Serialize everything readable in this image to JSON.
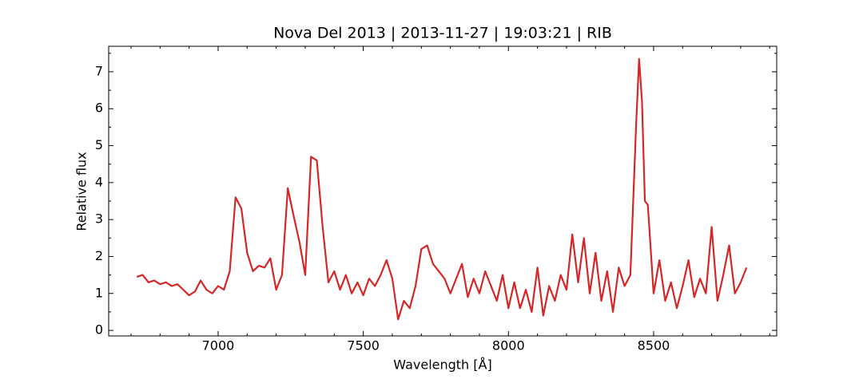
{
  "chart_data": {
    "type": "line",
    "title": "Nova Del 2013 | 2013-11-27 | 19:03:21 | RIB",
    "xlabel": "Wavelength [Å]",
    "ylabel": "Relative flux",
    "color": "#d62728",
    "x": [
      6720,
      6740,
      6760,
      6780,
      6800,
      6820,
      6840,
      6860,
      6880,
      6900,
      6920,
      6940,
      6960,
      6980,
      7000,
      7020,
      7040,
      7060,
      7080,
      7100,
      7120,
      7140,
      7160,
      7180,
      7200,
      7220,
      7240,
      7260,
      7280,
      7300,
      7320,
      7340,
      7360,
      7380,
      7400,
      7420,
      7440,
      7460,
      7480,
      7500,
      7520,
      7540,
      7560,
      7580,
      7600,
      7620,
      7640,
      7660,
      7680,
      7700,
      7720,
      7740,
      7760,
      7780,
      7800,
      7820,
      7840,
      7860,
      7880,
      7900,
      7920,
      7940,
      7960,
      7980,
      8000,
      8020,
      8040,
      8060,
      8080,
      8100,
      8120,
      8140,
      8160,
      8180,
      8200,
      8220,
      8240,
      8260,
      8280,
      8300,
      8320,
      8340,
      8360,
      8380,
      8400,
      8420,
      8440,
      8450,
      8460,
      8470,
      8480,
      8500,
      8520,
      8540,
      8560,
      8580,
      8600,
      8620,
      8640,
      8660,
      8680,
      8700,
      8720,
      8740,
      8760,
      8780,
      8800,
      8820
    ],
    "values": [
      1.45,
      1.5,
      1.3,
      1.35,
      1.25,
      1.3,
      1.2,
      1.25,
      1.1,
      0.95,
      1.05,
      1.35,
      1.1,
      1.0,
      1.2,
      1.1,
      1.6,
      3.6,
      3.3,
      2.1,
      1.6,
      1.75,
      1.7,
      1.95,
      1.1,
      1.5,
      3.85,
      3.1,
      2.4,
      1.5,
      4.7,
      4.6,
      2.8,
      1.3,
      1.6,
      1.1,
      1.5,
      1.0,
      1.3,
      0.95,
      1.4,
      1.2,
      1.5,
      1.9,
      1.4,
      0.3,
      0.8,
      0.6,
      1.2,
      2.2,
      2.3,
      1.8,
      1.6,
      1.4,
      1.0,
      1.4,
      1.8,
      0.9,
      1.4,
      1.0,
      1.6,
      1.2,
      0.8,
      1.5,
      0.6,
      1.3,
      0.6,
      1.1,
      0.5,
      1.7,
      0.4,
      1.2,
      0.8,
      1.5,
      1.1,
      2.6,
      1.3,
      2.5,
      1.0,
      2.1,
      0.8,
      1.6,
      0.5,
      1.7,
      1.2,
      1.5,
      5.6,
      7.35,
      6.2,
      3.5,
      3.4,
      1.0,
      1.9,
      0.8,
      1.3,
      0.6,
      1.2,
      1.9,
      0.9,
      1.4,
      1.0,
      2.8,
      0.8,
      1.5,
      2.3,
      1.0,
      1.3,
      1.7
    ],
    "xlim": [
      6623,
      8924
    ],
    "ylim": [
      -0.15,
      7.69
    ],
    "xticks": [
      7000,
      7500,
      8000,
      8500
    ],
    "yticks": [
      0,
      1,
      2,
      3,
      4,
      5,
      6,
      7
    ],
    "xminorticks": [
      6700,
      6800,
      6900,
      7100,
      7200,
      7300,
      7400,
      7600,
      7700,
      7800,
      7900,
      8100,
      8200,
      8300,
      8400,
      8600,
      8700,
      8800,
      8900
    ],
    "yminorticks": [
      0.5,
      1.5,
      2.5,
      3.5,
      4.5,
      5.5,
      6.5,
      7.5
    ]
  }
}
